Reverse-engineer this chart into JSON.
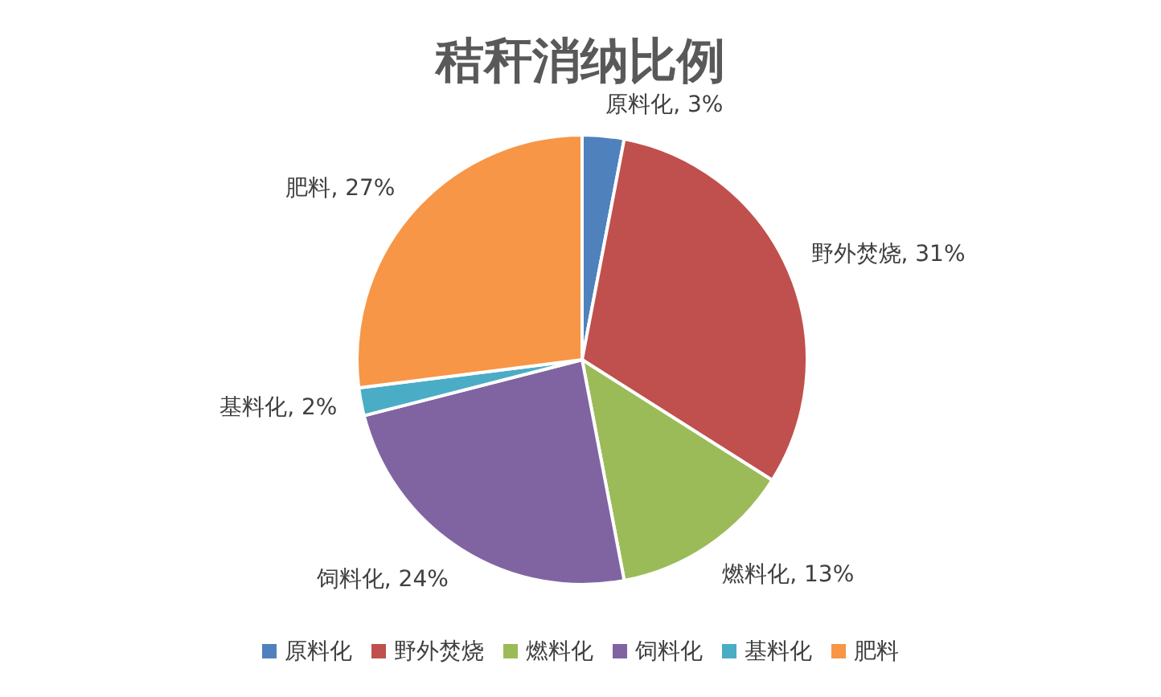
{
  "chart_data": {
    "type": "pie",
    "title": "秸秆消纳比例",
    "categories": [
      "原料化",
      "野外焚烧",
      "燃料化",
      "饲料化",
      "基料化",
      "肥料"
    ],
    "values": [
      3,
      31,
      13,
      24,
      2,
      27
    ],
    "colors": [
      "#4f81bd",
      "#c0504d",
      "#9bbb59",
      "#8064a2",
      "#4bacc6",
      "#f79646"
    ],
    "value_labels": [
      "原料化, 3%",
      "野外焚烧, 31%",
      "燃料化, 13%",
      "饲料化, 24%",
      "基料化, 2%",
      "肥料, 27%"
    ],
    "legend": "bottom"
  }
}
